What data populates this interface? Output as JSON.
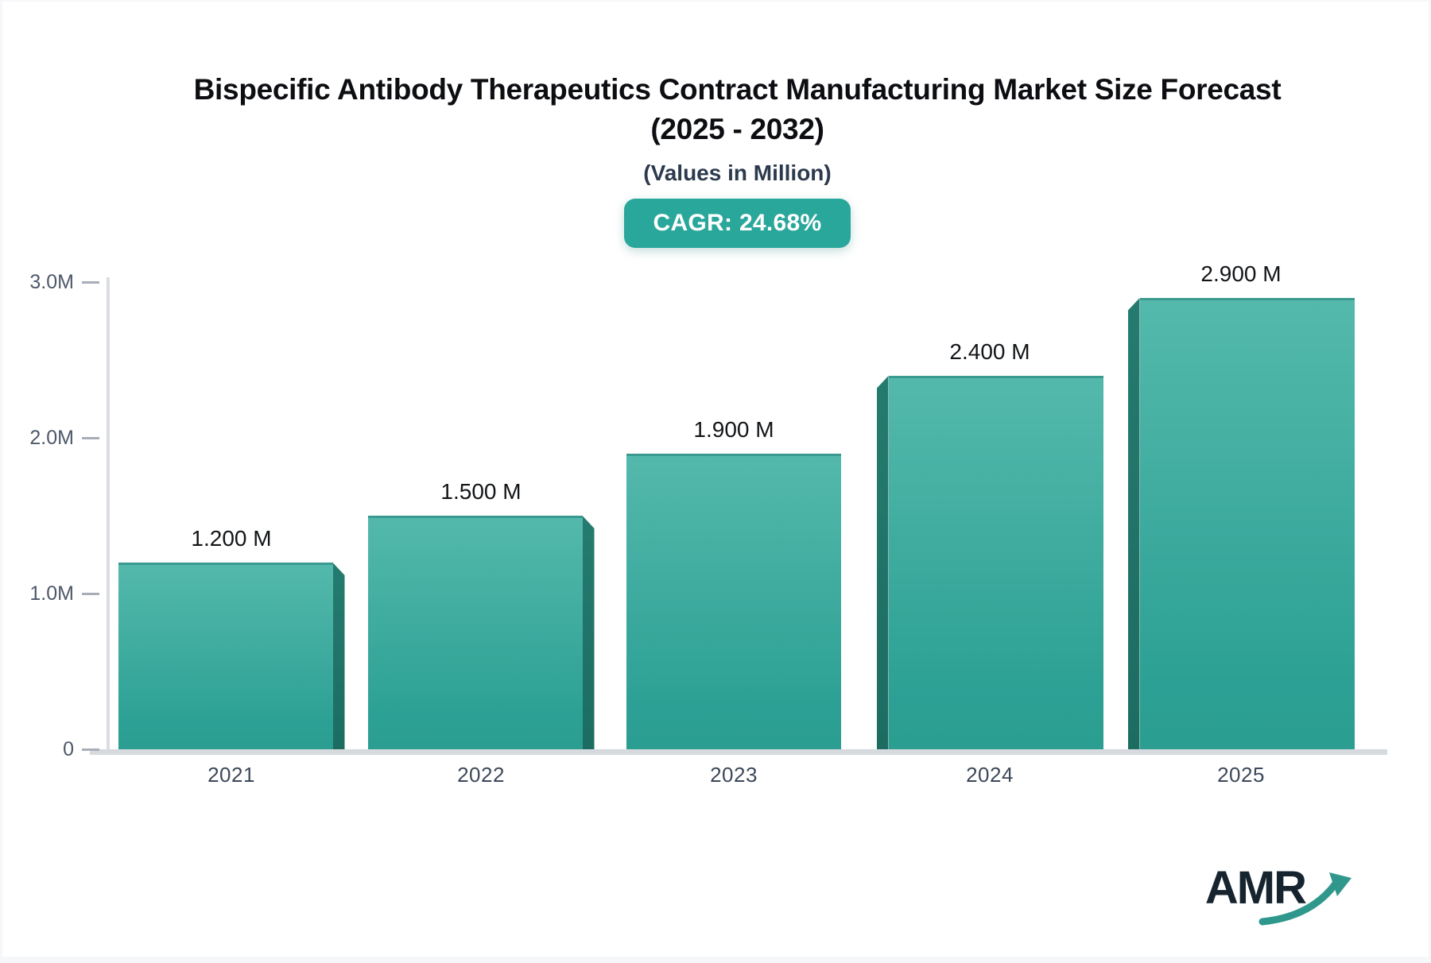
{
  "header": {
    "title_line1": "Bispecific Antibody Therapeutics Contract Manufacturing Market Size Forecast",
    "title_line2": "(2025 - 2032)",
    "subtitle": "(Values in Million)",
    "cagr_label": "CAGR: 24.68%"
  },
  "chart_data": {
    "type": "bar",
    "title": "Bispecific Antibody Therapeutics Contract Manufacturing Market Size Forecast (2025 - 2032)",
    "subtitle": "(Values in Million)",
    "unit": "Million",
    "cagr_percent": 24.68,
    "categories": [
      "2021",
      "2022",
      "2023",
      "2024",
      "2025"
    ],
    "values": [
      1.2,
      1.5,
      1.9,
      2.4,
      2.9
    ],
    "value_labels": [
      "1.200 M",
      "1.500 M",
      "1.900 M",
      "2.400 M",
      "2.900 M"
    ],
    "ylim": [
      0,
      3.0
    ],
    "y_ticks": [
      {
        "label": "3.0M",
        "value": 3.0
      },
      {
        "label": "2.0M",
        "value": 2.0
      },
      {
        "label": "1.0M",
        "value": 1.0
      },
      {
        "label": "0",
        "value": 0
      }
    ],
    "grid": false,
    "legend": false,
    "bar_3d_edge_side": [
      "right",
      "right",
      "none",
      "left",
      "left"
    ],
    "colors": {
      "bar_top": "#54b9ac",
      "bar_bottom": "#2b9e91",
      "bar_edge": "#1e7168",
      "badge_background": "#2aa79b",
      "badge_text": "#ffffff",
      "axis_line": "#d6d9dd",
      "tick_text": "#4e586a"
    }
  },
  "branding": {
    "logo_text": "AMR",
    "logo_arrow_icon": "trending-up-arrow",
    "logo_text_color": "#16242f",
    "logo_arrow_color": "#2f978b"
  }
}
